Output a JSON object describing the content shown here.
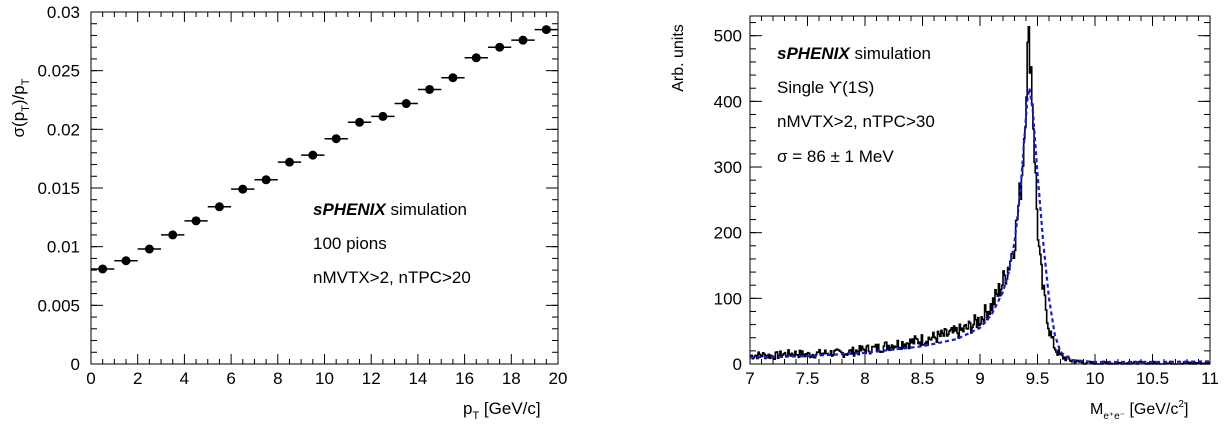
{
  "chart_data": [
    {
      "type": "scatter",
      "xlabel_main": "p",
      "xlabel_sub": "T",
      "xlabel_tail": " [GeV/c]",
      "ylabel": {
        "sigma_open": "σ(p",
        "sub1": "T",
        "mid": ")/p",
        "sub2": "T"
      },
      "xlim": [
        0,
        20
      ],
      "ylim": [
        0,
        0.03
      ],
      "xticks": [
        "0",
        "2",
        "4",
        "6",
        "8",
        "10",
        "12",
        "14",
        "16",
        "18",
        "20"
      ],
      "yticks": [
        "0",
        "0.005",
        "0.01",
        "0.015",
        "0.02",
        "0.025",
        "0.03"
      ],
      "x_error_halfwidth": 0.5,
      "points": [
        {
          "x": 0.5,
          "y": 0.0081
        },
        {
          "x": 1.5,
          "y": 0.0088
        },
        {
          "x": 2.5,
          "y": 0.0098
        },
        {
          "x": 3.5,
          "y": 0.011
        },
        {
          "x": 4.5,
          "y": 0.0122
        },
        {
          "x": 5.5,
          "y": 0.0134
        },
        {
          "x": 6.5,
          "y": 0.0149
        },
        {
          "x": 7.5,
          "y": 0.0157
        },
        {
          "x": 8.5,
          "y": 0.0172
        },
        {
          "x": 9.5,
          "y": 0.0178
        },
        {
          "x": 10.5,
          "y": 0.0192
        },
        {
          "x": 11.5,
          "y": 0.0206
        },
        {
          "x": 12.5,
          "y": 0.0211
        },
        {
          "x": 13.5,
          "y": 0.0222
        },
        {
          "x": 14.5,
          "y": 0.0234
        },
        {
          "x": 15.5,
          "y": 0.0244
        },
        {
          "x": 16.5,
          "y": 0.0261
        },
        {
          "x": 17.5,
          "y": 0.027
        },
        {
          "x": 18.5,
          "y": 0.0276
        },
        {
          "x": 19.5,
          "y": 0.0285
        }
      ],
      "annotations": {
        "brand": "sPHENIX",
        "brand_tail": " simulation",
        "line2": "100 pions",
        "line3": "nMVTX>2, nTPC>20"
      }
    },
    {
      "type": "line",
      "xlabel_main": "M",
      "xlabel_sub": "e⁺e⁻",
      "xlabel_tail": " [GeV/c",
      "xlabel_sup": "2",
      "xlabel_end": "]",
      "ylabel": "Arb. units",
      "xlim": [
        7,
        11
      ],
      "ylim": [
        0,
        530
      ],
      "xticks": [
        "7",
        "7.5",
        "8",
        "8.5",
        "9",
        "9.5",
        "10",
        "10.5",
        "11"
      ],
      "yticks": [
        "0",
        "100",
        "200",
        "300",
        "400",
        "500"
      ],
      "series": [
        {
          "kind": "histogram",
          "color": "#000000",
          "x": [
            7.0,
            7.1,
            7.2,
            7.3,
            7.4,
            7.5,
            7.6,
            7.7,
            7.8,
            7.9,
            8.0,
            8.1,
            8.2,
            8.3,
            8.4,
            8.5,
            8.6,
            8.7,
            8.8,
            8.9,
            9.0,
            9.05,
            9.1,
            9.15,
            9.2,
            9.25,
            9.3,
            9.33,
            9.36,
            9.38,
            9.4,
            9.42,
            9.44,
            9.46,
            9.48,
            9.5,
            9.52,
            9.55,
            9.58,
            9.6,
            9.63,
            9.66,
            9.7,
            9.8,
            9.9,
            10.0
          ],
          "y": [
            12,
            14,
            12,
            15,
            16,
            14,
            16,
            17,
            16,
            19,
            22,
            24,
            28,
            31,
            33,
            37,
            40,
            44,
            48,
            55,
            68,
            78,
            88,
            105,
            125,
            150,
            185,
            230,
            280,
            330,
            410,
            495,
            470,
            390,
            300,
            215,
            160,
            110,
            80,
            55,
            35,
            22,
            12,
            5,
            2,
            1
          ]
        },
        {
          "kind": "fit",
          "color": "#1a1adc",
          "dashed": true,
          "x": [
            7.0,
            7.5,
            8.0,
            8.5,
            8.8,
            9.0,
            9.1,
            9.2,
            9.25,
            9.3,
            9.35,
            9.38,
            9.41,
            9.43,
            9.46,
            9.5,
            9.55,
            9.6,
            9.65,
            9.7,
            9.8,
            10.0,
            10.5,
            11.0
          ],
          "y": [
            10,
            12,
            17,
            27,
            38,
            55,
            75,
            110,
            140,
            185,
            260,
            330,
            400,
            420,
            385,
            290,
            185,
            100,
            45,
            18,
            6,
            3,
            3,
            4
          ]
        }
      ],
      "annotations": {
        "brand": "sPHENIX",
        "brand_tail": " simulation",
        "line2": "Single ϒ(1S)",
        "line3": "nMVTX>2, nTPC>30",
        "line4": "σ = 86 ± 1 MeV"
      }
    }
  ]
}
